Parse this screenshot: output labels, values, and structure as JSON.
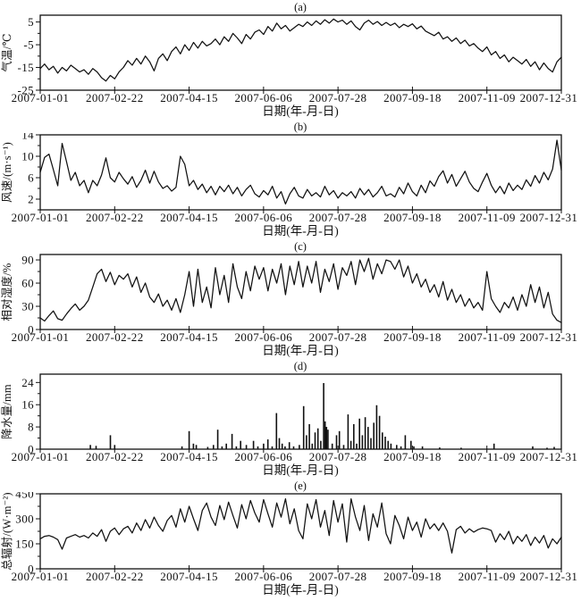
{
  "figure": {
    "x_axis_title": "日期(年-月-日)",
    "x_tick_labels": [
      "2007-01-01",
      "2007-02-22",
      "2007-04-15",
      "2007-06-06",
      "2007-07-28",
      "2007-09-18",
      "2007-11-09",
      "2007-12-31"
    ],
    "x_tick_days": [
      1,
      53,
      105,
      157,
      209,
      261,
      313,
      365
    ],
    "x_range_days": [
      1,
      365
    ],
    "line_color": "#111111",
    "background_color": "#ffffff"
  },
  "chart_data": [
    {
      "id": "a",
      "label": "(a)",
      "type": "line",
      "ylabel": "气温/℃",
      "yticks": [
        5,
        -5,
        -15,
        -25
      ],
      "yminor": [
        0,
        -10,
        -20
      ],
      "ylim": [
        -25,
        8
      ],
      "values": [
        -15.5,
        -13.5,
        -16,
        -14.5,
        -17.5,
        -15,
        -16.5,
        -14,
        -15.5,
        -17,
        -16,
        -18,
        -15.5,
        -17,
        -19.5,
        -21,
        -18.5,
        -20,
        -17,
        -15,
        -12,
        -14,
        -11,
        -13.5,
        -10,
        -12.5,
        -16.5,
        -11,
        -9,
        -12,
        -8,
        -6,
        -9,
        -5,
        -7.5,
        -4,
        -6.5,
        -3.5,
        -5.5,
        -4.5,
        -2.5,
        -5,
        -1.5,
        -3.5,
        0,
        -2,
        -4.5,
        -0.5,
        -2.5,
        0.5,
        1.5,
        -0.5,
        3,
        1,
        4.5,
        2,
        3.5,
        1,
        2.5,
        4,
        3,
        5,
        3.5,
        5.5,
        4,
        6,
        4.5,
        6.3,
        5,
        5.8,
        4,
        5.5,
        3,
        1.5,
        4.5,
        5.8,
        4,
        5.2,
        3.5,
        4.8,
        3.5,
        4.5,
        2.5,
        4,
        3,
        4.2,
        2,
        3.2,
        1,
        0,
        -1,
        0.5,
        -2.5,
        -1.5,
        -3.5,
        -2,
        -4.5,
        -3,
        -5.5,
        -4.5,
        -6.5,
        -8,
        -6,
        -9.5,
        -8,
        -11,
        -9.5,
        -12.5,
        -10.5,
        -12,
        -13.5,
        -11.5,
        -14.5,
        -12.5,
        -16,
        -13,
        -15.5,
        -17,
        -12.5,
        -10.5
      ]
    },
    {
      "id": "b",
      "label": "(b)",
      "type": "line",
      "ylabel": "风速/(m·s⁻¹)",
      "yticks": [
        14,
        10,
        6,
        2
      ],
      "yminor": [
        12,
        8,
        4,
        0
      ],
      "ylim": [
        0,
        14
      ],
      "values": [
        7,
        9.8,
        10.4,
        7.5,
        4.5,
        12.4,
        9,
        5.5,
        7,
        4.5,
        5.5,
        3.2,
        5.5,
        4.5,
        6.5,
        9.7,
        6,
        5.2,
        7,
        5.8,
        4.8,
        6.2,
        4.2,
        5.5,
        7.4,
        5,
        7.2,
        5.2,
        4,
        4.5,
        3.5,
        4.2,
        10,
        8.5,
        4.5,
        5.5,
        3.8,
        4.8,
        3.2,
        4.4,
        2.8,
        4.4,
        3.4,
        4.6,
        3,
        4.2,
        2.6,
        3.8,
        4.6,
        3,
        2.4,
        3.6,
        2.8,
        4.4,
        2.2,
        3.4,
        1.1,
        3,
        4.2,
        2.6,
        2.2,
        3.8,
        2.6,
        3.2,
        2.4,
        4.4,
        2.8,
        3.6,
        2.2,
        3.2,
        2.6,
        3.4,
        2.2,
        4,
        2.8,
        3.8,
        2.4,
        3.2,
        4.4,
        2.6,
        3,
        2.4,
        4.2,
        3,
        5,
        3.4,
        2.6,
        4.6,
        3.2,
        5.4,
        4.4,
        6.2,
        7.3,
        5,
        6.6,
        4.4,
        5.8,
        7.2,
        5.2,
        4,
        3.4,
        5.2,
        6.8,
        4.6,
        3.2,
        4.4,
        3,
        5,
        3.6,
        4.6,
        3.8,
        5.6,
        4.4,
        6.4,
        5,
        7,
        5.6,
        7.6,
        13,
        7.4
      ]
    },
    {
      "id": "c",
      "label": "(c)",
      "type": "line",
      "ylabel": "相对湿度/%",
      "yticks": [
        90,
        60,
        30,
        0
      ],
      "yminor": [
        75,
        45,
        15
      ],
      "ylim": [
        0,
        97
      ],
      "values": [
        15,
        11,
        18,
        24,
        14,
        12,
        20,
        27,
        33,
        25,
        30,
        38,
        55,
        72,
        78,
        62,
        74,
        58,
        70,
        65,
        72,
        55,
        68,
        48,
        60,
        42,
        35,
        46,
        30,
        38,
        25,
        40,
        22,
        45,
        75,
        30,
        78,
        35,
        55,
        28,
        80,
        45,
        70,
        35,
        85,
        55,
        40,
        75,
        50,
        82,
        65,
        80,
        50,
        78,
        60,
        85,
        45,
        82,
        58,
        88,
        55,
        82,
        60,
        88,
        48,
        78,
        62,
        85,
        52,
        80,
        70,
        88,
        58,
        90,
        75,
        92,
        65,
        85,
        72,
        90,
        88,
        78,
        90,
        68,
        82,
        60,
        72,
        55,
        65,
        48,
        58,
        42,
        62,
        38,
        52,
        35,
        45,
        30,
        40,
        28,
        35,
        25,
        75,
        40,
        30,
        22,
        35,
        28,
        42,
        25,
        45,
        30,
        58,
        35,
        55,
        28,
        48,
        20,
        12,
        9
      ]
    },
    {
      "id": "d",
      "label": "(d)",
      "type": "bar",
      "ylabel": "降水量/mm",
      "yticks": [
        24,
        16,
        8,
        0
      ],
      "yminor": [
        20,
        12,
        4
      ],
      "ylim": [
        0,
        27
      ],
      "events": [
        [
          36,
          1.5
        ],
        [
          40,
          1.2
        ],
        [
          50,
          5
        ],
        [
          53,
          1.5
        ],
        [
          100,
          1
        ],
        [
          105,
          6.5
        ],
        [
          108,
          2
        ],
        [
          110,
          1.5
        ],
        [
          118,
          0.8
        ],
        [
          122,
          1.5
        ],
        [
          125,
          7
        ],
        [
          128,
          1
        ],
        [
          131,
          2
        ],
        [
          135,
          5.5
        ],
        [
          138,
          1
        ],
        [
          141,
          3
        ],
        [
          145,
          1.5
        ],
        [
          150,
          3
        ],
        [
          153,
          1
        ],
        [
          157,
          2
        ],
        [
          160,
          3.5
        ],
        [
          163,
          1
        ],
        [
          166,
          13
        ],
        [
          168,
          4
        ],
        [
          170,
          2
        ],
        [
          172,
          1
        ],
        [
          175,
          2.5
        ],
        [
          178,
          1
        ],
        [
          182,
          1.5
        ],
        [
          185,
          15.5
        ],
        [
          187,
          5
        ],
        [
          189,
          9
        ],
        [
          191,
          2
        ],
        [
          193,
          6
        ],
        [
          195,
          7.5
        ],
        [
          197,
          3
        ],
        [
          199,
          23.8
        ],
        [
          200,
          10
        ],
        [
          201,
          8
        ],
        [
          202,
          7
        ],
        [
          205,
          2
        ],
        [
          208,
          5
        ],
        [
          210,
          6.5
        ],
        [
          213,
          1.5
        ],
        [
          216,
          12.5
        ],
        [
          218,
          3
        ],
        [
          220,
          9
        ],
        [
          222,
          2
        ],
        [
          224,
          11
        ],
        [
          226,
          5
        ],
        [
          228,
          11.5
        ],
        [
          230,
          8
        ],
        [
          232,
          4
        ],
        [
          234,
          9.5
        ],
        [
          236,
          15.8
        ],
        [
          238,
          12
        ],
        [
          240,
          6
        ],
        [
          242,
          4.5
        ],
        [
          244,
          3
        ],
        [
          246,
          2
        ],
        [
          250,
          1.5
        ],
        [
          253,
          1
        ],
        [
          256,
          5
        ],
        [
          260,
          3
        ],
        [
          262,
          1
        ],
        [
          268,
          1
        ],
        [
          280,
          0.6
        ],
        [
          295,
          0.5
        ],
        [
          318,
          2
        ],
        [
          345,
          1
        ],
        [
          355,
          0.5
        ],
        [
          360,
          0.8
        ]
      ]
    },
    {
      "id": "e",
      "label": "(e)",
      "type": "line",
      "ylabel": "总辐射/(W·m⁻²)",
      "yticks": [
        450,
        300,
        150,
        0
      ],
      "yminor": [
        375,
        225,
        75
      ],
      "ylim": [
        0,
        450
      ],
      "values": [
        180,
        195,
        200,
        190,
        175,
        118,
        185,
        195,
        205,
        190,
        200,
        185,
        215,
        195,
        235,
        165,
        225,
        245,
        205,
        240,
        255,
        215,
        275,
        230,
        295,
        245,
        310,
        260,
        225,
        290,
        320,
        250,
        360,
        280,
        375,
        300,
        230,
        350,
        395,
        310,
        260,
        380,
        295,
        400,
        320,
        245,
        385,
        300,
        410,
        335,
        280,
        415,
        330,
        250,
        395,
        310,
        420,
        270,
        360,
        230,
        180,
        390,
        300,
        415,
        250,
        350,
        200,
        410,
        280,
        390,
        160,
        420,
        310,
        230,
        380,
        170,
        330,
        250,
        395,
        210,
        150,
        320,
        260,
        180,
        310,
        230,
        280,
        190,
        300,
        240,
        270,
        230,
        275,
        225,
        95,
        235,
        255,
        215,
        240,
        220,
        235,
        245,
        240,
        230,
        160,
        210,
        175,
        225,
        150,
        195,
        165,
        205,
        140,
        190,
        155,
        200,
        125,
        180,
        150,
        190
      ]
    }
  ]
}
